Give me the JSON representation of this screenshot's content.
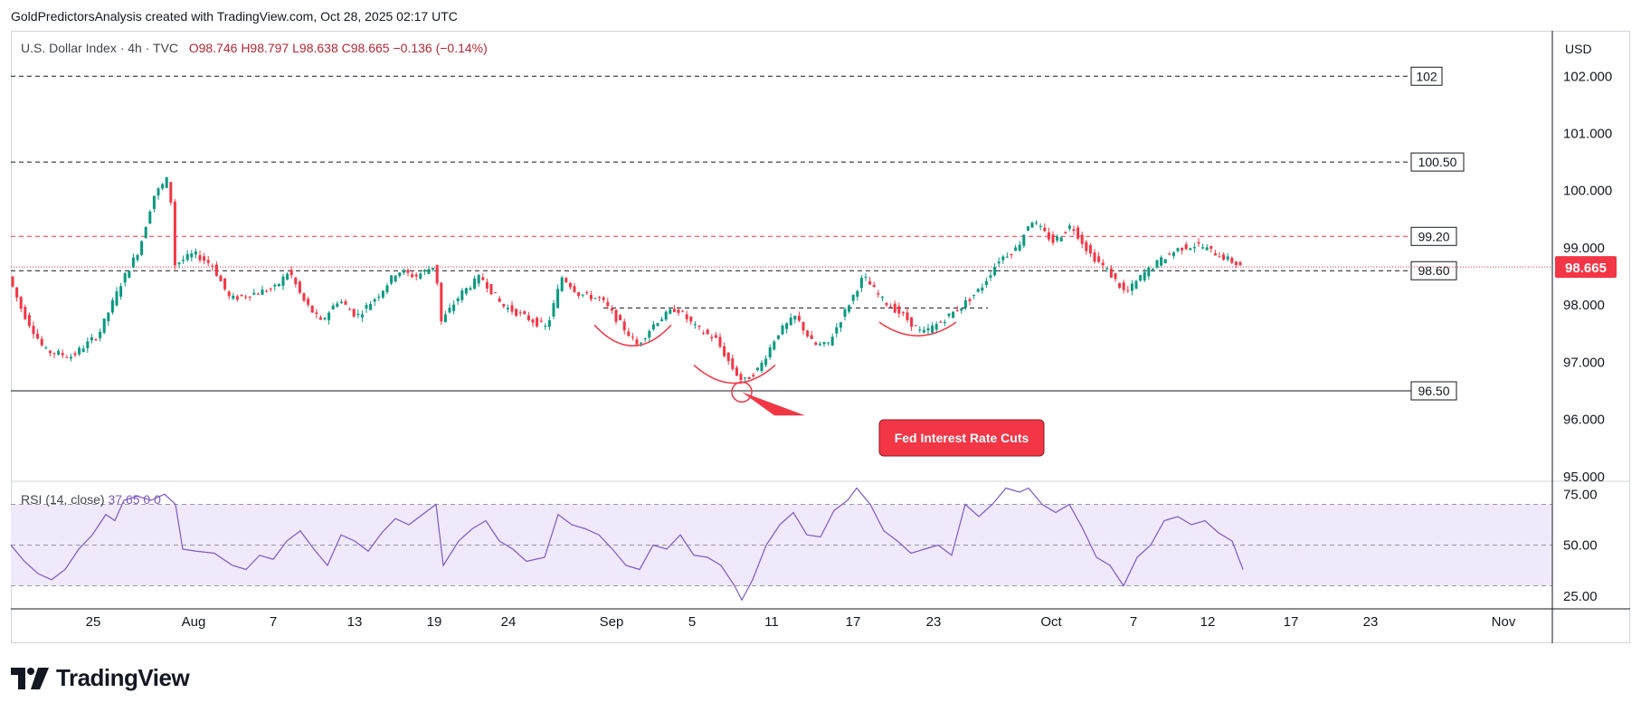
{
  "header": {
    "publisher": "GoldPredictorsAnalysis created with TradingView.com, Oct 28, 2025 02:17 UTC"
  },
  "legend": {
    "symbol": "U.S. Dollar Index · 4h · TVC",
    "open": "O98.746",
    "high": "H98.797",
    "low": "L98.638",
    "close": "C98.665",
    "change": "−0.136 (−0.14%)"
  },
  "currency": "USD",
  "brand": "TradingView",
  "colors": {
    "up": "#089981",
    "down": "#f23645",
    "rsi_line": "#7e57c2",
    "rsi_band": "#efe9fb",
    "annotation": "#f23645",
    "last_price_bg": "#f23645"
  },
  "chart_data": [
    {
      "type": "candlestick",
      "series": [
        {
          "name": "U.S. Dollar Index"
        }
      ],
      "x_ticks": [
        "25",
        "Aug",
        "7",
        "13",
        "19",
        "24",
        "Sep",
        "5",
        "11",
        "17",
        "23",
        "Oct",
        "7",
        "12",
        "17",
        "23",
        "Nov"
      ],
      "y_ticks": [
        "102.000",
        "101.000",
        "100.000",
        "99.000",
        "98.000",
        "97.000",
        "96.000",
        "95.000"
      ],
      "ylim": [
        94.95,
        102.7
      ],
      "last_price": "98.665",
      "path": [
        [
          0,
          98.5
        ],
        [
          15,
          97.9
        ],
        [
          40,
          97.2
        ],
        [
          70,
          97.1
        ],
        [
          100,
          97.5
        ],
        [
          125,
          98.4
        ],
        [
          145,
          99.0
        ],
        [
          160,
          99.9
        ],
        [
          178,
          100.25
        ],
        [
          183,
          98.7
        ],
        [
          205,
          98.9
        ],
        [
          225,
          98.7
        ],
        [
          245,
          98.1
        ],
        [
          270,
          98.2
        ],
        [
          295,
          98.3
        ],
        [
          310,
          98.6
        ],
        [
          325,
          98.1
        ],
        [
          345,
          97.7
        ],
        [
          365,
          98.1
        ],
        [
          385,
          97.8
        ],
        [
          410,
          98.2
        ],
        [
          430,
          98.6
        ],
        [
          450,
          98.5
        ],
        [
          472,
          98.7
        ],
        [
          478,
          97.7
        ],
        [
          500,
          98.2
        ],
        [
          522,
          98.5
        ],
        [
          545,
          98.0
        ],
        [
          570,
          97.8
        ],
        [
          595,
          97.6
        ],
        [
          612,
          98.5
        ],
        [
          630,
          98.2
        ],
        [
          655,
          98.1
        ],
        [
          680,
          97.6
        ],
        [
          695,
          97.3
        ],
        [
          715,
          97.7
        ],
        [
          738,
          97.95
        ],
        [
          760,
          97.6
        ],
        [
          782,
          97.4
        ],
        [
          800,
          96.9
        ],
        [
          812,
          96.65
        ],
        [
          830,
          96.9
        ],
        [
          850,
          97.5
        ],
        [
          870,
          97.8
        ],
        [
          890,
          97.3
        ],
        [
          905,
          97.3
        ],
        [
          925,
          97.9
        ],
        [
          945,
          98.5
        ],
        [
          965,
          98.1
        ],
        [
          990,
          97.8
        ],
        [
          1010,
          97.5
        ],
        [
          1030,
          97.7
        ],
        [
          1055,
          98.0
        ],
        [
          1075,
          98.3
        ],
        [
          1095,
          98.8
        ],
        [
          1115,
          99.0
        ],
        [
          1130,
          99.5
        ],
        [
          1155,
          99.1
        ],
        [
          1175,
          99.4
        ],
        [
          1195,
          98.9
        ],
        [
          1215,
          98.6
        ],
        [
          1235,
          98.2
        ],
        [
          1255,
          98.55
        ],
        [
          1275,
          98.8
        ],
        [
          1295,
          99.0
        ],
        [
          1315,
          99.05
        ],
        [
          1335,
          98.9
        ],
        [
          1360,
          98.7
        ]
      ],
      "levels": [
        {
          "value": 102.0,
          "label": "102",
          "style": "dashed",
          "color": "#131722"
        },
        {
          "value": 100.5,
          "label": "100.50",
          "style": "dashed",
          "color": "#131722"
        },
        {
          "value": 99.2,
          "label": "99.20",
          "style": "dashed",
          "color": "#f23645"
        },
        {
          "value": 98.6,
          "label": "98.60",
          "style": "dashed",
          "color": "#131722"
        },
        {
          "value": 96.5,
          "label": "96.50",
          "style": "solid",
          "color": "#131722"
        }
      ],
      "annotation": {
        "text": "Fed Interest Rate Cuts"
      }
    },
    {
      "type": "line",
      "series": [
        {
          "name": "RSI (14, close)"
        }
      ],
      "rsi_label": "RSI (14, close)",
      "rsi_value": "37.65",
      "extra_values": "0  0",
      "y_ticks": [
        "75.00",
        "50.00",
        "25.00"
      ],
      "ylim": [
        20,
        80
      ],
      "band": [
        30,
        70
      ],
      "values": [
        [
          0,
          50
        ],
        [
          15,
          42
        ],
        [
          30,
          36
        ],
        [
          45,
          33
        ],
        [
          60,
          38
        ],
        [
          75,
          48
        ],
        [
          90,
          55
        ],
        [
          105,
          65
        ],
        [
          115,
          62
        ],
        [
          125,
          72
        ],
        [
          140,
          74
        ],
        [
          155,
          72
        ],
        [
          170,
          75
        ],
        [
          182,
          70
        ],
        [
          190,
          48
        ],
        [
          205,
          47
        ],
        [
          225,
          46
        ],
        [
          245,
          40
        ],
        [
          260,
          38
        ],
        [
          275,
          45
        ],
        [
          290,
          43
        ],
        [
          305,
          52
        ],
        [
          320,
          57
        ],
        [
          335,
          48
        ],
        [
          350,
          40
        ],
        [
          365,
          55
        ],
        [
          380,
          52
        ],
        [
          395,
          47
        ],
        [
          410,
          56
        ],
        [
          425,
          63
        ],
        [
          440,
          60
        ],
        [
          455,
          65
        ],
        [
          470,
          70
        ],
        [
          478,
          40
        ],
        [
          495,
          52
        ],
        [
          510,
          58
        ],
        [
          525,
          62
        ],
        [
          540,
          52
        ],
        [
          555,
          48
        ],
        [
          570,
          42
        ],
        [
          590,
          44
        ],
        [
          605,
          65
        ],
        [
          620,
          60
        ],
        [
          635,
          58
        ],
        [
          650,
          55
        ],
        [
          665,
          48
        ],
        [
          680,
          40
        ],
        [
          695,
          38
        ],
        [
          710,
          50
        ],
        [
          725,
          48
        ],
        [
          740,
          55
        ],
        [
          755,
          45
        ],
        [
          770,
          44
        ],
        [
          785,
          40
        ],
        [
          800,
          30
        ],
        [
          808,
          23
        ],
        [
          820,
          33
        ],
        [
          835,
          50
        ],
        [
          850,
          60
        ],
        [
          865,
          66
        ],
        [
          880,
          55
        ],
        [
          895,
          54
        ],
        [
          910,
          67
        ],
        [
          925,
          72
        ],
        [
          935,
          78
        ],
        [
          950,
          70
        ],
        [
          965,
          57
        ],
        [
          980,
          52
        ],
        [
          995,
          46
        ],
        [
          1010,
          48
        ],
        [
          1025,
          50
        ],
        [
          1040,
          45
        ],
        [
          1055,
          70
        ],
        [
          1070,
          64
        ],
        [
          1085,
          70
        ],
        [
          1100,
          78
        ],
        [
          1115,
          76
        ],
        [
          1125,
          78
        ],
        [
          1140,
          70
        ],
        [
          1155,
          66
        ],
        [
          1170,
          70
        ],
        [
          1185,
          58
        ],
        [
          1200,
          44
        ],
        [
          1215,
          40
        ],
        [
          1230,
          30
        ],
        [
          1245,
          44
        ],
        [
          1260,
          50
        ],
        [
          1275,
          62
        ],
        [
          1290,
          64
        ],
        [
          1305,
          60
        ],
        [
          1320,
          62
        ],
        [
          1335,
          56
        ],
        [
          1350,
          52
        ],
        [
          1362,
          38
        ]
      ]
    }
  ]
}
